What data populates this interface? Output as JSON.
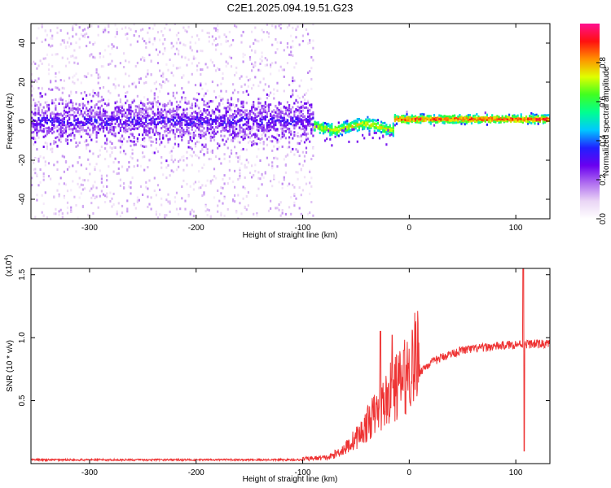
{
  "title": "C2E1.2025.094.19.51.G23",
  "chart_data": [
    {
      "type": "heatmap",
      "name": "spectrogram",
      "xlabel": "Height of straight line (km)",
      "ylabel": "Frequency (Hz)",
      "xlim": [
        -355,
        132
      ],
      "ylim": [
        -50,
        50
      ],
      "xticks": [
        -300,
        -200,
        -100,
        0,
        100
      ],
      "yticks": [
        -40,
        -20,
        0,
        20,
        40
      ],
      "grid": false,
      "colorbar": {
        "label": "Normalized spectral amplitude",
        "range": [
          0,
          1
        ],
        "ticks": [
          0.0,
          0.2,
          0.4,
          0.6,
          0.8
        ],
        "colormap": [
          "#ffffff",
          "#ead5f5",
          "#b06ef0",
          "#6a00f0",
          "#2020ff",
          "#00c8ff",
          "#00ff90",
          "#40ff20",
          "#e0ff00",
          "#ff9000",
          "#ff1010",
          "#ff1090"
        ]
      },
      "description_band": [
        {
          "x_range": [
            -355,
            -90
          ],
          "center_freq": 0,
          "core_halfwidth_hz": 9,
          "scatter_halfwidth_hz": 50,
          "amplitude": 0.2
        },
        {
          "x_range": [
            -90,
            -15
          ],
          "center_freq": -3,
          "core_halfwidth_hz": 3,
          "scatter_halfwidth_hz": 10,
          "amplitude": 0.75
        },
        {
          "x_range": [
            -15,
            132
          ],
          "center_freq": 1,
          "core_halfwidth_hz": 2,
          "scatter_halfwidth_hz": 3,
          "amplitude": 0.9
        }
      ]
    },
    {
      "type": "line",
      "name": "snr",
      "xlabel": "Height of straight line (km)",
      "ylabel": "SNR (10 * v/v)",
      "yscale_note": "(x10",
      "yscale_exp": "4",
      "yscale_close": ")",
      "xlim": [
        -355,
        132
      ],
      "ylim": [
        0,
        1.55
      ],
      "xticks": [
        -300,
        -200,
        -100,
        0,
        100
      ],
      "yticks": [
        0.5,
        1.0,
        1.5
      ],
      "yticklabels": [
        "0.5",
        "1.0",
        "1.5"
      ],
      "color": "#ee3333",
      "series_envelope": [
        {
          "x": -355,
          "y": 0.03
        },
        {
          "x": -100,
          "y": 0.03
        },
        {
          "x": -75,
          "y": 0.04
        },
        {
          "x": -60,
          "y": 0.1
        },
        {
          "x": -45,
          "y": 0.2
        },
        {
          "x": -35,
          "y": 0.3
        },
        {
          "x": -25,
          "y": 0.38
        },
        {
          "x": -15,
          "y": 0.48
        },
        {
          "x": -5,
          "y": 0.55
        },
        {
          "x": 5,
          "y": 0.68
        },
        {
          "x": 15,
          "y": 0.77
        },
        {
          "x": 25,
          "y": 0.82
        },
        {
          "x": 35,
          "y": 0.86
        },
        {
          "x": 50,
          "y": 0.9
        },
        {
          "x": 70,
          "y": 0.92
        },
        {
          "x": 90,
          "y": 0.94
        },
        {
          "x": 105,
          "y": 0.95
        },
        {
          "x": 120,
          "y": 0.95
        },
        {
          "x": 132,
          "y": 0.95
        }
      ],
      "spikes": [
        {
          "x": -27,
          "y": 1.05
        },
        {
          "x": -16,
          "y": 1.02
        },
        {
          "x": -5,
          "y": 0.9
        },
        {
          "x": 107,
          "y": 1.55
        },
        {
          "x": 108,
          "y": 0.1
        }
      ]
    }
  ]
}
